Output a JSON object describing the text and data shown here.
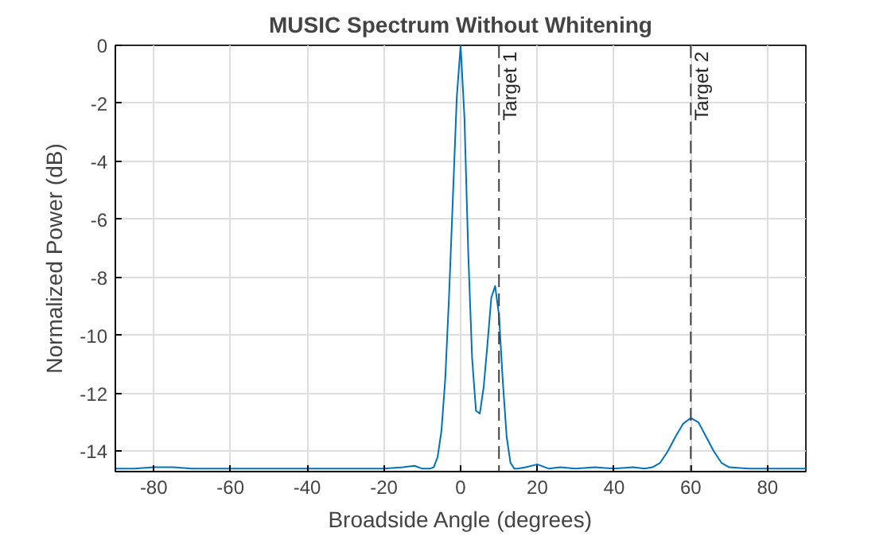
{
  "chart_data": {
    "type": "line",
    "title": "MUSIC Spectrum Without Whitening",
    "xlabel": "Broadside Angle (degrees)",
    "ylabel": "Normalized Power (dB)",
    "x": [
      -90,
      -85,
      -80,
      -75,
      -70,
      -65,
      -60,
      -55,
      -50,
      -45,
      -40,
      -35,
      -30,
      -25,
      -20,
      -15,
      -12,
      -10,
      -8,
      -7,
      -6,
      -5,
      -4,
      -3,
      -2,
      -1,
      0,
      1,
      2,
      3,
      4,
      5,
      6,
      7,
      8,
      9,
      10,
      11,
      12,
      13,
      14,
      15,
      17,
      20,
      23,
      26,
      30,
      35,
      40,
      45,
      48,
      50,
      52,
      54,
      56,
      58,
      60,
      62,
      64,
      66,
      68,
      70,
      75,
      80,
      85,
      90
    ],
    "series": [
      {
        "color": "#0072bd",
        "values": [
          -14.6,
          -14.6,
          -14.55,
          -14.55,
          -14.6,
          -14.6,
          -14.6,
          -14.6,
          -14.6,
          -14.6,
          -14.6,
          -14.6,
          -14.6,
          -14.6,
          -14.6,
          -14.55,
          -14.5,
          -14.6,
          -14.6,
          -14.55,
          -14.2,
          -13.3,
          -11.5,
          -8.6,
          -5.2,
          -1.8,
          0,
          -2.5,
          -7.2,
          -10.8,
          -12.6,
          -12.7,
          -11.8,
          -10.3,
          -8.7,
          -8.3,
          -9.3,
          -11.6,
          -13.5,
          -14.4,
          -14.6,
          -14.6,
          -14.55,
          -14.45,
          -14.6,
          -14.55,
          -14.6,
          -14.55,
          -14.6,
          -14.55,
          -14.6,
          -14.55,
          -14.4,
          -14.0,
          -13.5,
          -13.05,
          -12.85,
          -13.0,
          -13.5,
          -14.0,
          -14.4,
          -14.55,
          -14.6,
          -14.6,
          -14.6,
          -14.6
        ]
      }
    ],
    "xlim": [
      -90,
      90
    ],
    "ylim": [
      -14.7,
      0
    ],
    "xticks": [
      -80,
      -60,
      -40,
      -20,
      0,
      20,
      40,
      60,
      80
    ],
    "yticks": [
      -14,
      -12,
      -10,
      -8,
      -6,
      -4,
      -2,
      0
    ],
    "grid": true,
    "ref_lines": [
      {
        "axis": "x",
        "value": 10,
        "label": "Target 1",
        "line_style": "dashed",
        "color": "#404040"
      },
      {
        "axis": "x",
        "value": 60,
        "label": "Target 2",
        "line_style": "dashed",
        "color": "#404040"
      }
    ]
  }
}
